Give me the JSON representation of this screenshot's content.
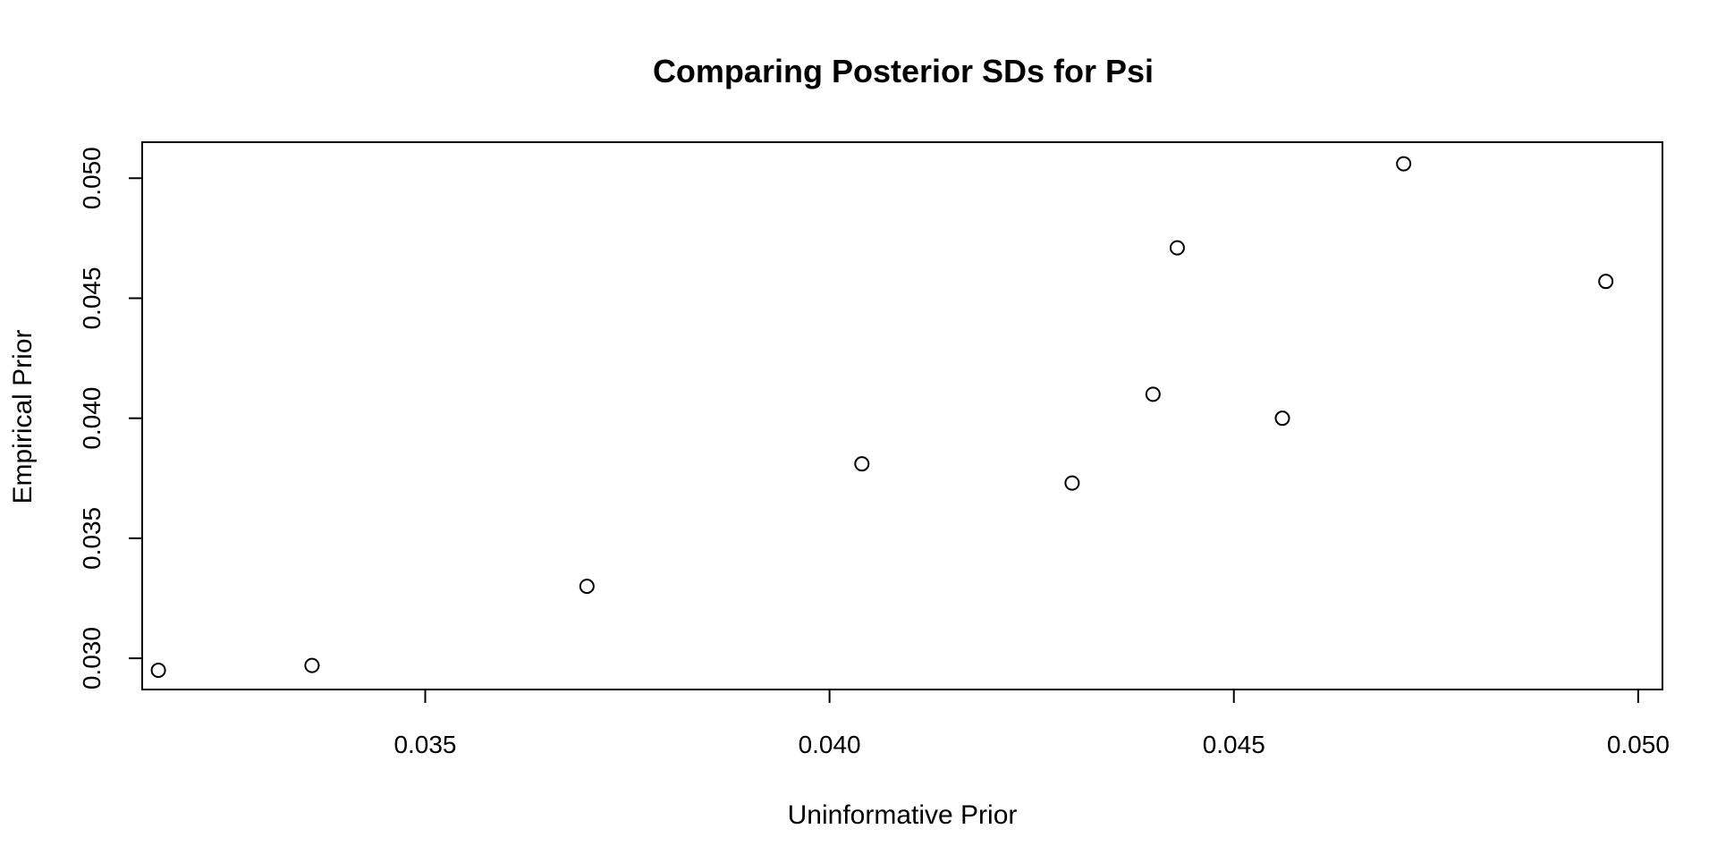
{
  "chart_data": {
    "type": "scatter",
    "title": "Comparing Posterior SDs for Psi",
    "xlabel": "Uninformative Prior",
    "ylabel": "Empirical Prior",
    "xlim": [
      0.0315,
      0.0503
    ],
    "ylim": [
      0.0287,
      0.0515
    ],
    "x_ticks": [
      0.035,
      0.04,
      0.045,
      0.05
    ],
    "x_tick_labels": [
      "0.035",
      "0.040",
      "0.045",
      "0.050"
    ],
    "y_ticks": [
      0.03,
      0.035,
      0.04,
      0.045,
      0.05
    ],
    "y_tick_labels": [
      "0.030",
      "0.035",
      "0.040",
      "0.045",
      "0.050"
    ],
    "grid": false,
    "legend": "none",
    "marker": "open-circle",
    "points": [
      {
        "x": 0.0317,
        "y": 0.0295
      },
      {
        "x": 0.0336,
        "y": 0.0297
      },
      {
        "x": 0.037,
        "y": 0.033
      },
      {
        "x": 0.0404,
        "y": 0.0381
      },
      {
        "x": 0.043,
        "y": 0.0373
      },
      {
        "x": 0.044,
        "y": 0.041
      },
      {
        "x": 0.0443,
        "y": 0.0471
      },
      {
        "x": 0.0456,
        "y": 0.04
      },
      {
        "x": 0.0471,
        "y": 0.0506
      },
      {
        "x": 0.0496,
        "y": 0.0457
      }
    ]
  }
}
